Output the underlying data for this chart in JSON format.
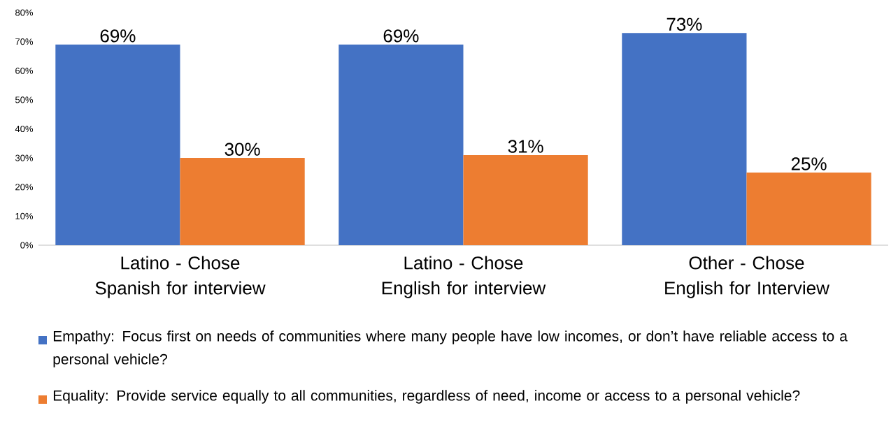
{
  "chart_data": {
    "type": "bar",
    "categories": [
      "Latino - Chose Spanish for interview",
      "Latino - Chose English for interview",
      "Other - Chose English for Interview"
    ],
    "series": [
      {
        "name": "Empathy: Focus first on needs of communities where many people have low incomes, or don’t have reliable access to a personal vehicle?",
        "color": "#4472c4",
        "values": [
          69,
          69,
          73
        ],
        "value_labels": [
          "69%",
          "69%",
          "73%"
        ]
      },
      {
        "name": "Equality: Provide service equally to all communities, regardless of need, income or access to a personal vehicle?",
        "color": "#ed7d31",
        "values": [
          30,
          31,
          25
        ],
        "value_labels": [
          "30%",
          "31%",
          "25%"
        ]
      }
    ],
    "ylim": [
      0,
      80
    ],
    "yticks": [
      {
        "value": 0,
        "label": "0%"
      },
      {
        "value": 10,
        "label": "10%"
      },
      {
        "value": 20,
        "label": "20%"
      },
      {
        "value": 30,
        "label": "30%"
      },
      {
        "value": 40,
        "label": "40%"
      },
      {
        "value": 50,
        "label": "50%"
      },
      {
        "value": 60,
        "label": "60%"
      },
      {
        "value": 70,
        "label": "70%"
      },
      {
        "value": 80,
        "label": "80%"
      }
    ],
    "grid": false,
    "legend": "bottom"
  }
}
